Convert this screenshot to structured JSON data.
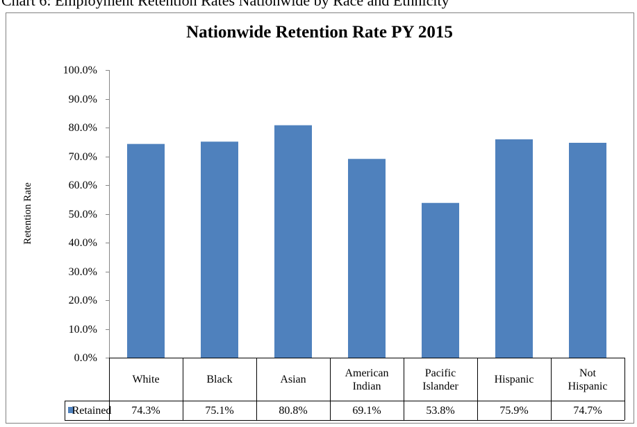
{
  "chart_data": {
    "type": "bar",
    "caption": "Chart 6: Employment Retention Rates Nationwide by Race and Ethnicity",
    "title": "Nationwide Retention Rate PY 2015",
    "y_axis_label": "Retention Rate",
    "categories": [
      "White",
      "Black",
      "Asian",
      "American Indian",
      "Pacific Islander",
      "Hispanic",
      "Not Hispanic"
    ],
    "series": [
      {
        "name": "Retained",
        "color": "#4f81bd",
        "values": [
          74.3,
          75.1,
          80.8,
          69.1,
          53.8,
          75.9,
          74.7
        ],
        "value_labels": [
          "74.3%",
          "75.1%",
          "80.8%",
          "69.1%",
          "53.8%",
          "75.9%",
          "74.7%"
        ]
      }
    ],
    "ylim": [
      0,
      100
    ],
    "yticks": [
      {
        "value": 0,
        "label": "0.0%"
      },
      {
        "value": 10,
        "label": "10.0%"
      },
      {
        "value": 20,
        "label": "20.0%"
      },
      {
        "value": 30,
        "label": "30.0%"
      },
      {
        "value": 40,
        "label": "40.0%"
      },
      {
        "value": 50,
        "label": "50.0%"
      },
      {
        "value": 60,
        "label": "60.0%"
      },
      {
        "value": 70,
        "label": "70.0%"
      },
      {
        "value": 80,
        "label": "80.0%"
      },
      {
        "value": 90,
        "label": "90.0%"
      },
      {
        "value": 100,
        "label": "100.0%"
      }
    ],
    "grid": false
  }
}
